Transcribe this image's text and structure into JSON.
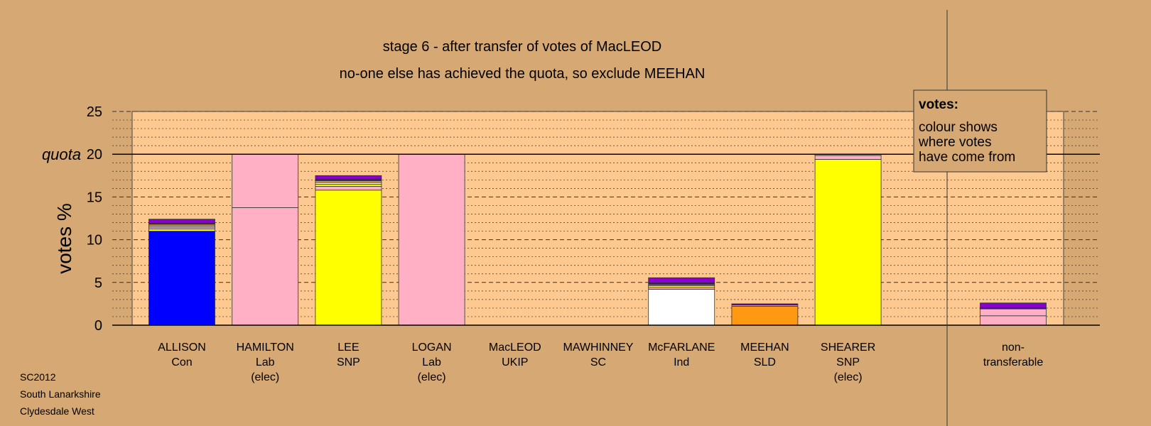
{
  "titles": {
    "line1": "stage 6 - after transfer of votes of MacLEOD",
    "line2": "no-one else has achieved the quota, so exclude MEEHAN"
  },
  "footer": [
    "SC2012",
    "South Lanarkshire",
    "Clydesdale West"
  ],
  "legend": {
    "title": "votes:",
    "lines": [
      "colour shows",
      "where votes",
      "have come from"
    ]
  },
  "colors": {
    "background": "#d5a874",
    "plot": "#fdc990",
    "Con": "#0000ff",
    "Lab": "#ffb0c4",
    "SNP": "#ffff00",
    "Ind": "#ffffff",
    "SLD": "#ff9912",
    "UKIP": "#8a00d0"
  },
  "chart_data": {
    "type": "bar",
    "ylabel": "votes %",
    "ylim": [
      0,
      25
    ],
    "yticks": [
      0,
      5,
      10,
      15,
      20,
      25
    ],
    "quota": {
      "label": "quota",
      "value": 20
    },
    "grid": true,
    "legend_position": "top-right",
    "categories": [
      {
        "name": "ALLISON",
        "party": "Con",
        "note": ""
      },
      {
        "name": "HAMILTON",
        "party": "Lab",
        "note": "(elec)"
      },
      {
        "name": "LEE",
        "party": "SNP",
        "note": ""
      },
      {
        "name": "LOGAN",
        "party": "Lab",
        "note": "(elec)"
      },
      {
        "name": "MacLEOD",
        "party": "UKIP",
        "note": ""
      },
      {
        "name": "MAWHINNEY",
        "party": "SC",
        "note": ""
      },
      {
        "name": "McFARLANE",
        "party": "Ind",
        "note": ""
      },
      {
        "name": "MEEHAN",
        "party": "SLD",
        "note": ""
      },
      {
        "name": "SHEARER",
        "party": "SNP",
        "note": "(elec)"
      }
    ],
    "non_transferable": {
      "line1": "non-",
      "line2": "transferable"
    },
    "bars": [
      {
        "segments": [
          {
            "value": 11.0,
            "color": "#0000ff"
          },
          {
            "value": 0.25,
            "color": "#ffff00"
          },
          {
            "value": 0.2,
            "color": "#ffb0c4"
          },
          {
            "value": 0.15,
            "color": "#ffffff"
          },
          {
            "value": 0.2,
            "color": "#ff9912"
          },
          {
            "value": 0.15,
            "color": "#4b0f8c"
          },
          {
            "value": 0.45,
            "color": "#8a00d0"
          }
        ]
      },
      {
        "segments": [
          {
            "value": 13.75,
            "color": "#ffb0c4"
          },
          {
            "value": 6.25,
            "color": "#ffb0c4"
          }
        ]
      },
      {
        "segments": [
          {
            "value": 15.8,
            "color": "#ffff00"
          },
          {
            "value": 0.45,
            "color": "#ffb0c4"
          },
          {
            "value": 0.25,
            "color": "#ffff00"
          },
          {
            "value": 0.2,
            "color": "#ffffff"
          },
          {
            "value": 0.2,
            "color": "#ff9912"
          },
          {
            "value": 0.2,
            "color": "#4b0f8c"
          },
          {
            "value": 0.4,
            "color": "#8a00d0"
          }
        ]
      },
      {
        "segments": [
          {
            "value": 20.0,
            "color": "#ffb0c4"
          }
        ]
      },
      {
        "segments": []
      },
      {
        "segments": []
      },
      {
        "segments": [
          {
            "value": 4.2,
            "color": "#ffffff"
          },
          {
            "value": 0.2,
            "color": "#ffb0c4"
          },
          {
            "value": 0.2,
            "color": "#ffff00"
          },
          {
            "value": 0.15,
            "color": "#ff9912"
          },
          {
            "value": 0.2,
            "color": "#4b0f8c"
          },
          {
            "value": 0.6,
            "color": "#8a00d0"
          }
        ]
      },
      {
        "segments": [
          {
            "value": 2.2,
            "color": "#ff9912"
          },
          {
            "value": 0.15,
            "color": "#ffb0c4"
          },
          {
            "value": 0.15,
            "color": "#4b0f8c"
          }
        ]
      },
      {
        "segments": [
          {
            "value": 19.4,
            "color": "#ffff00"
          },
          {
            "value": 0.45,
            "color": "#ffb0c4"
          },
          {
            "value": 0.1,
            "color": "#ffffff"
          }
        ]
      },
      {
        "segments": [
          {
            "value": 1.1,
            "color": "#ffb0c4"
          },
          {
            "value": 0.8,
            "color": "#ffb0c4"
          },
          {
            "value": 0.15,
            "color": "#4b0f8c"
          },
          {
            "value": 0.55,
            "color": "#8a00d0"
          }
        ]
      }
    ]
  }
}
